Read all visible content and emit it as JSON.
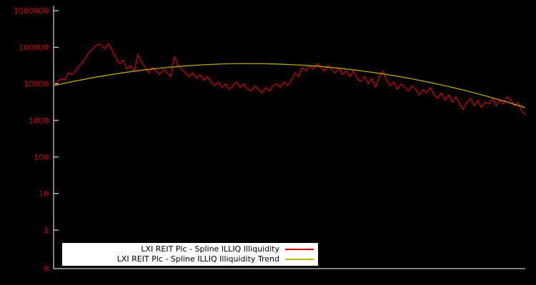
{
  "chart_data": {
    "type": "line",
    "title": "",
    "xlabel": "",
    "ylabel": "",
    "background_color": "#000000",
    "axis_color": "#ffffff",
    "tick_label_color": "#cc0000",
    "legend": {
      "position": "bottom-center",
      "background": "#ffffff",
      "text_color": "#000000"
    },
    "yaxis": {
      "scale": "log",
      "tick_labels": [
        "1000000",
        "100000",
        "10000",
        "1000",
        "100",
        "10",
        "1",
        "0"
      ],
      "range": [
        1,
        1000000
      ]
    },
    "series": [
      {
        "name": "LXI REIT Plc - Spline ILLIQ Illiquidity",
        "color": "#cc0000",
        "values": [
          10000,
          11200,
          14100,
          12600,
          20000,
          17800,
          22400,
          31600,
          39800,
          56200,
          79400,
          100000,
          120000,
          112000,
          89100,
          126000,
          79400,
          50100,
          35500,
          44700,
          25100,
          31600,
          22400,
          63100,
          39800,
          28200,
          20000,
          28200,
          22400,
          17800,
          25100,
          20000,
          15800,
          56200,
          31600,
          25100,
          20000,
          15800,
          20000,
          14100,
          17800,
          12600,
          15800,
          11200,
          8910,
          11200,
          7940,
          10000,
          7080,
          8910,
          11200,
          7940,
          10000,
          7080,
          6310,
          8910,
          7080,
          5620,
          7940,
          6310,
          8910,
          10000,
          7940,
          11200,
          8910,
          12600,
          20000,
          15800,
          28200,
          22400,
          31600,
          25100,
          35500,
          28200,
          22400,
          31600,
          25100,
          20000,
          28200,
          17800,
          22400,
          15800,
          22400,
          14100,
          11200,
          15800,
          10000,
          14100,
          7940,
          15800,
          22400,
          12600,
          8910,
          11200,
          7080,
          10000,
          7940,
          6310,
          8910,
          7080,
          5010,
          7080,
          5620,
          7940,
          5010,
          3980,
          5620,
          3550,
          5010,
          3160,
          4470,
          2820,
          2000,
          3160,
          3980,
          2510,
          3550,
          2240,
          3160,
          2820,
          3980,
          2510,
          3550,
          2820,
          4470,
          3550,
          2510,
          3160,
          1780,
          1410
        ]
      },
      {
        "name": "LXI REIT Plc - Spline ILLIQ Illiquidity Trend",
        "color": "#c8b400",
        "values": [
          8910,
          11510,
          14480,
          17750,
          21210,
          24680,
          27990,
          30950,
          33330,
          34990,
          35780,
          35660,
          34620,
          32760,
          30210,
          27140,
          23760,
          20280,
          16850,
          13650,
          10770,
          8290,
          6210,
          4540,
          3230,
          2240
        ]
      }
    ]
  }
}
